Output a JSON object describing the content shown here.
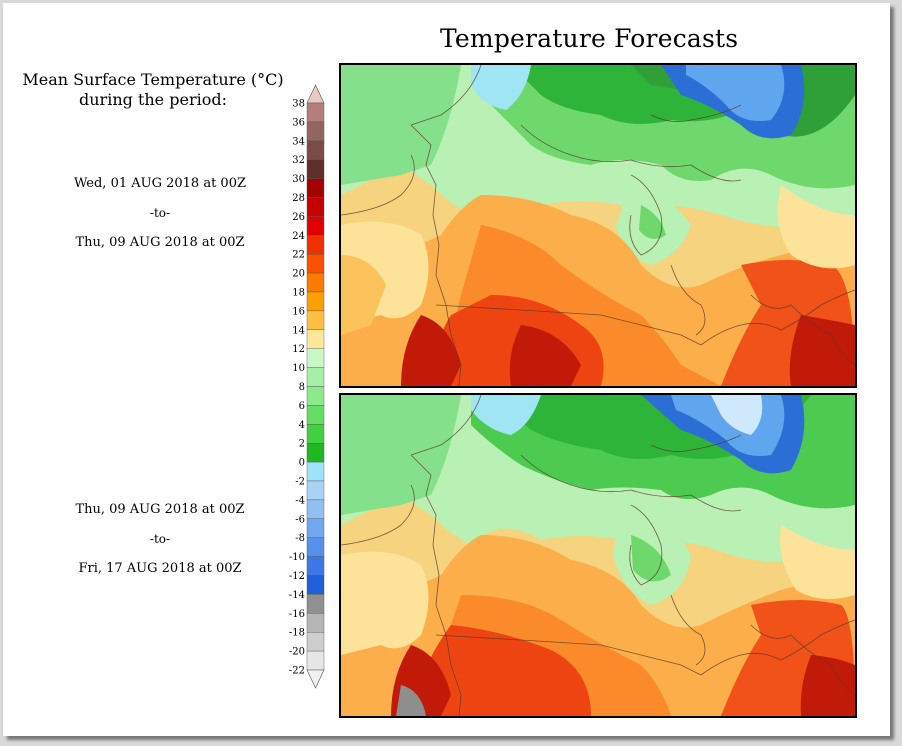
{
  "title": "Temperature Forecasts",
  "legend": {
    "title_line1": "Mean Surface Temperature (°C)",
    "title_line2": "during the period:",
    "ticks": [
      "38",
      "36",
      "34",
      "32",
      "30",
      "28",
      "26",
      "24",
      "22",
      "20",
      "18",
      "16",
      "14",
      "12",
      "10",
      "8",
      "6",
      "4",
      "2",
      "0",
      "-2",
      "-4",
      "-6",
      "-8",
      "-10",
      "-12",
      "-14",
      "-16",
      "-18",
      "-20",
      "-22"
    ],
    "colors": [
      "#b47f7a",
      "#94645e",
      "#7b4c45",
      "#5e3029",
      "#a50000",
      "#c60000",
      "#e00000",
      "#f03000",
      "#fa5000",
      "#fb7a00",
      "#fca000",
      "#fdc040",
      "#fde89a",
      "#c8f7c8",
      "#a6f0a6",
      "#8ce98c",
      "#66de66",
      "#40d040",
      "#20b820",
      "#9ee3f7",
      "#a9d3f5",
      "#90c0f2",
      "#70a8ef",
      "#5590ec",
      "#3b78e6",
      "#2060d8",
      "#909090",
      "#b5b5b5",
      "#cecece",
      "#e6e6e6"
    ],
    "top_cap_color": "#e8c9c3",
    "bottom_cap_color": "#f0f0f0"
  },
  "periods": [
    {
      "start": "Wed, 01 AUG 2018 at 00Z",
      "to": "-to-",
      "end": "Thu, 09 AUG 2018 at 00Z"
    },
    {
      "start": "Thu, 09 AUG 2018 at 00Z",
      "to": "-to-",
      "end": "Fri, 17 AUG 2018 at 00Z"
    }
  ]
}
